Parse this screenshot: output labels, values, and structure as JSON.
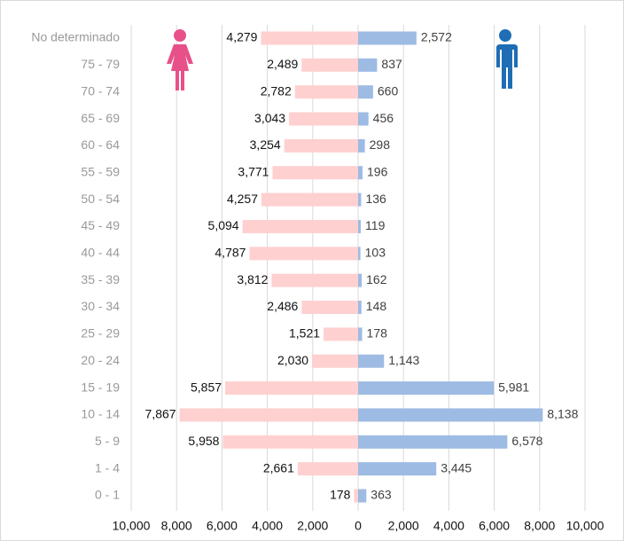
{
  "chart_data": {
    "type": "pyramid",
    "categories": [
      "No determinado",
      "75 - 79",
      "70 - 74",
      "65 - 69",
      "60 - 64",
      "55 - 59",
      "50 - 54",
      "45 - 49",
      "40 - 44",
      "35 - 39",
      "30 - 34",
      "25 - 29",
      "20 - 24",
      "15 - 19",
      "10 - 14",
      "5 - 9",
      "1 - 4",
      "0 - 1"
    ],
    "series": [
      {
        "side": "left",
        "color": "#ffd0d0",
        "values": [
          4279,
          2489,
          2782,
          3043,
          3254,
          3771,
          4257,
          5094,
          4787,
          3812,
          2486,
          1521,
          2030,
          5857,
          7867,
          5958,
          2661,
          178
        ],
        "value_labels": [
          "4,279",
          "2,489",
          "2,782",
          "3,043",
          "3,254",
          "3,771",
          "4,257",
          "5,094",
          "4,787",
          "3,812",
          "2,486",
          "1,521",
          "2,030",
          "5,857",
          "7,867",
          "5,958",
          "2,661",
          "178"
        ]
      },
      {
        "side": "right",
        "color": "#9dbbe3",
        "values": [
          2572,
          837,
          660,
          456,
          298,
          196,
          136,
          119,
          103,
          162,
          148,
          178,
          1143,
          5981,
          8138,
          6578,
          3445,
          363
        ],
        "value_labels": [
          "2,572",
          "837",
          "660",
          "456",
          "298",
          "196",
          "136",
          "119",
          "103",
          "162",
          "148",
          "178",
          "1,143",
          "5,981",
          "8,138",
          "6,578",
          "3,445",
          "363"
        ]
      }
    ],
    "xlim": [
      -10000,
      10000
    ],
    "xticks": [
      {
        "value": -10000,
        "label": "10,000"
      },
      {
        "value": -8000,
        "label": "8,000"
      },
      {
        "value": -6000,
        "label": "6,000"
      },
      {
        "value": -4000,
        "label": "4,000"
      },
      {
        "value": -2000,
        "label": "2,000"
      },
      0,
      {
        "value": 2000,
        "label": "2,000"
      },
      {
        "value": 4000,
        "label": "4,000"
      },
      {
        "value": 6000,
        "label": "6,000"
      },
      {
        "value": 8000,
        "label": "8,000"
      },
      {
        "value": 10000,
        "label": "10,000"
      }
    ],
    "grid": true
  }
}
